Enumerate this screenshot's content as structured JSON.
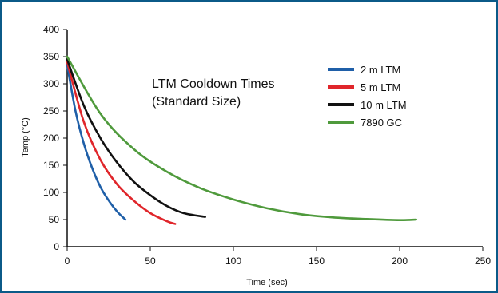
{
  "chart_data": {
    "type": "line",
    "title": "LTM Cooldown Times",
    "subtitle": "(Standard Size)",
    "xlabel": "Time (sec)",
    "ylabel": "Temp (°C)",
    "xlim": [
      0,
      250
    ],
    "ylim": [
      0,
      400
    ],
    "xticks": [
      0,
      50,
      100,
      150,
      200,
      250
    ],
    "yticks": [
      0,
      50,
      100,
      150,
      200,
      250,
      300,
      350,
      400
    ],
    "grid": false,
    "legend_position": "top-right",
    "series": [
      {
        "name": "2 m LTM",
        "color": "#1f5fa8",
        "x": [
          0,
          5,
          10,
          15,
          20,
          25,
          30,
          35
        ],
        "y": [
          335,
          250,
          190,
          145,
          110,
          85,
          65,
          50
        ]
      },
      {
        "name": "5 m LTM",
        "color": "#e0262b",
        "x": [
          0,
          10,
          20,
          30,
          40,
          50,
          60,
          65
        ],
        "y": [
          340,
          230,
          160,
          115,
          85,
          62,
          47,
          42
        ]
      },
      {
        "name": "10 m LTM",
        "color": "#111111",
        "x": [
          0,
          10,
          20,
          30,
          40,
          50,
          60,
          70,
          83
        ],
        "y": [
          345,
          260,
          200,
          155,
          120,
          95,
          75,
          62,
          55
        ]
      },
      {
        "name": "7890 GC",
        "color": "#4f9a3c",
        "x": [
          0,
          20,
          40,
          60,
          80,
          100,
          120,
          140,
          160,
          180,
          200,
          210
        ],
        "y": [
          350,
          245,
          180,
          138,
          108,
          87,
          71,
          60,
          54,
          51,
          49,
          50
        ]
      }
    ]
  }
}
